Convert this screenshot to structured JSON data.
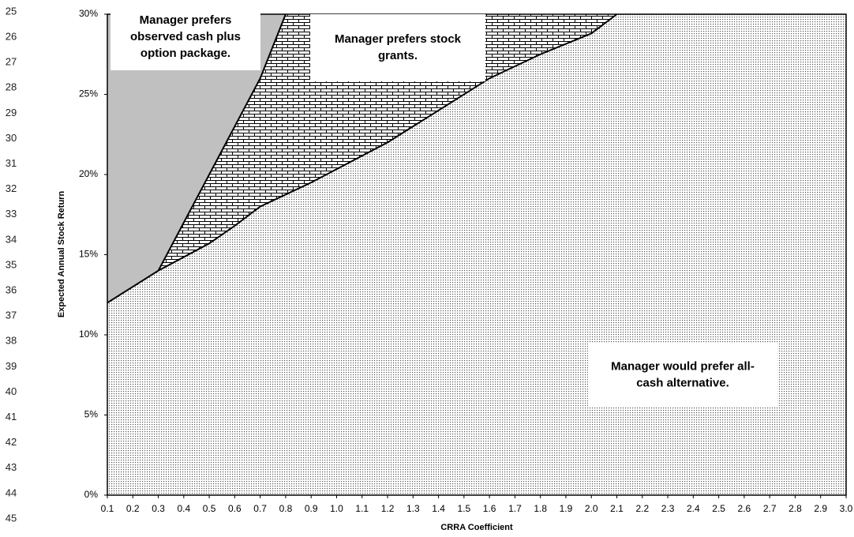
{
  "chart_data": {
    "type": "area",
    "row_numbers": [
      25,
      26,
      27,
      28,
      29,
      30,
      31,
      32,
      33,
      34,
      35,
      36,
      37,
      38,
      39,
      40,
      41,
      42,
      43,
      44,
      45
    ],
    "x_label": "CRRA Coefficient",
    "y_label": "Expected Annual Stock Return",
    "xlim": [
      0.1,
      3.0
    ],
    "ylim": [
      0,
      30
    ],
    "xticks": [
      0.1,
      0.2,
      0.3,
      0.4,
      0.5,
      0.6,
      0.7,
      0.8,
      0.9,
      {
        "value": 1.0,
        "label": "1.0"
      },
      1.1,
      1.2,
      1.3,
      1.4,
      1.5,
      1.6,
      1.7,
      1.8,
      1.9,
      {
        "value": 2.0,
        "label": "2.0"
      },
      2.1,
      2.2,
      2.3,
      2.4,
      2.5,
      2.6,
      2.7,
      2.8,
      2.9,
      {
        "value": 3.0,
        "label": "3.0"
      }
    ],
    "yticks": [
      {
        "value": 0,
        "label": "0%"
      },
      {
        "value": 5,
        "label": "5%"
      },
      {
        "value": 10,
        "label": "10%"
      },
      {
        "value": 15,
        "label": "15%"
      },
      {
        "value": 20,
        "label": "20%"
      },
      {
        "value": 25,
        "label": "25%"
      },
      {
        "value": 30,
        "label": "30%"
      }
    ],
    "boundaries": [
      {
        "x": [
          0.1,
          0.3,
          0.5,
          0.6,
          0.7,
          0.9,
          1.2,
          1.4,
          1.6,
          1.8,
          2.0,
          2.1
        ],
        "values": [
          12,
          14,
          15.7,
          16.8,
          18,
          19.5,
          22,
          24,
          26,
          27.5,
          28.8,
          30
        ]
      },
      {
        "x": [
          0.3,
          0.4,
          0.5,
          0.6,
          0.7,
          0.8
        ],
        "values": [
          14,
          17,
          20,
          23,
          26,
          30
        ]
      }
    ],
    "regions": [
      {
        "lines": [
          "Manager would prefer all-",
          "cash alternative."
        ],
        "fill": "dots"
      },
      {
        "lines": [
          "Manager prefers stock",
          "grants."
        ],
        "fill": "bricks"
      },
      {
        "lines": [
          "Manager prefers",
          "observed cash plus",
          "option package."
        ],
        "color": "#c0c0c0"
      }
    ]
  }
}
